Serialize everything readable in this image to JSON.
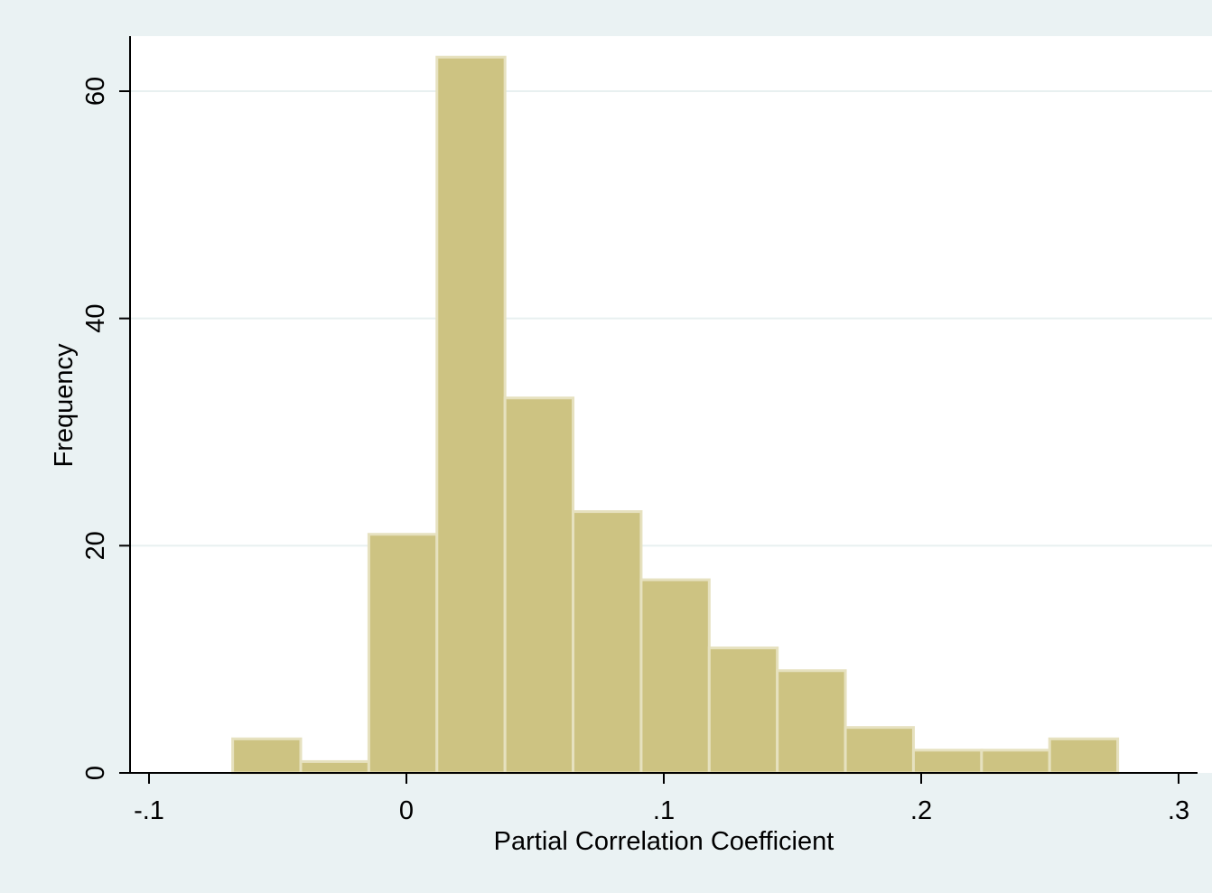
{
  "chart_data": {
    "type": "bar",
    "subtype": "histogram",
    "xlabel": "Partial Correlation Coefficient",
    "ylabel": "Frequency",
    "xlim": [
      -0.107,
      0.307
    ],
    "ylim": [
      0,
      65
    ],
    "x_ticks": [
      {
        "value": -0.1,
        "label": "-.1"
      },
      {
        "value": 0,
        "label": "0"
      },
      {
        "value": 0.1,
        "label": ".1"
      },
      {
        "value": 0.2,
        "label": ".2"
      },
      {
        "value": 0.3,
        "label": ".3"
      }
    ],
    "y_ticks": [
      {
        "value": 0,
        "label": "0"
      },
      {
        "value": 20,
        "label": "20"
      },
      {
        "value": 40,
        "label": "40"
      },
      {
        "value": 60,
        "label": "60"
      }
    ],
    "bin_start": -0.0675,
    "bin_width": 0.02645,
    "values": [
      3,
      1,
      21,
      63,
      33,
      23,
      17,
      11,
      9,
      4,
      2,
      2,
      3
    ],
    "grid": true,
    "legend": "none",
    "colors": {
      "bar_fill": "#cdc382",
      "bar_edge": "#e6e1bf",
      "plot_background": "#ffffff",
      "outer_background": "#eaf2f3",
      "gridline": "#e8f0f0",
      "axis": "#000000"
    }
  }
}
